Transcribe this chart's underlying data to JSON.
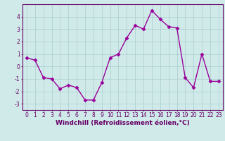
{
  "x": [
    0,
    1,
    2,
    3,
    4,
    5,
    6,
    7,
    8,
    9,
    10,
    11,
    12,
    13,
    14,
    15,
    16,
    17,
    18,
    19,
    20,
    21,
    22,
    23
  ],
  "y": [
    0.7,
    0.5,
    -0.9,
    -1.0,
    -1.8,
    -1.5,
    -1.7,
    -2.7,
    -2.7,
    -1.3,
    0.7,
    1.0,
    2.3,
    3.3,
    3.0,
    4.5,
    3.8,
    3.2,
    3.1,
    -0.9,
    -1.7,
    1.0,
    -1.2,
    -1.2
  ],
  "line_color": "#990099",
  "marker": "D",
  "markersize": 2.5,
  "linewidth": 1.0,
  "xlabel": "Windchill (Refroidissement éolien,°C)",
  "xlabel_fontsize": 6.5,
  "xlim": [
    -0.5,
    23.5
  ],
  "ylim": [
    -3.5,
    5.0
  ],
  "yticks": [
    -3,
    -2,
    -1,
    0,
    1,
    2,
    3,
    4
  ],
  "xticks": [
    0,
    1,
    2,
    3,
    4,
    5,
    6,
    7,
    8,
    9,
    10,
    11,
    12,
    13,
    14,
    15,
    16,
    17,
    18,
    19,
    20,
    21,
    22,
    23
  ],
  "tick_fontsize": 5.5,
  "grid_color": "#aacccc",
  "bg_color": "#d0eaea",
  "axis_color": "#660066",
  "tick_color": "#660066"
}
